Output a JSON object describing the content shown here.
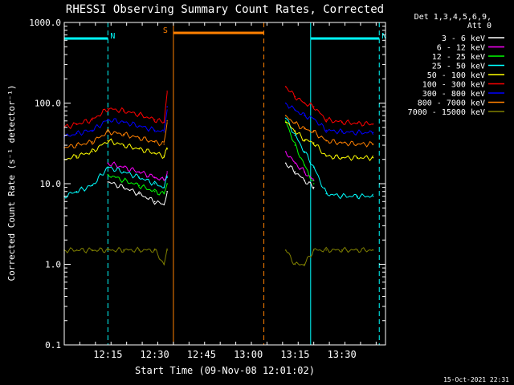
{
  "chart_data": {
    "type": "line",
    "title": "RHESSI Observing Summary Count Rates, Corrected",
    "xlabel": "Start Time (09-Nov-08 12:01:02)",
    "ylabel": "Corrected Count Rate (s⁻¹ detector⁻¹)",
    "y_scale": "log",
    "ylim": [
      0.1,
      1000
    ],
    "xlim": [
      "12:01",
      "13:44"
    ],
    "xtick_labels": [
      "12:15",
      "12:30",
      "12:45",
      "13:00",
      "13:15",
      "13:30"
    ],
    "ytick_labels": [
      "0.1",
      "1.0",
      "10.0",
      "100.0",
      "1000.0"
    ],
    "legend_header": [
      "Det 1,3,4,5,6,9,",
      "Att 0"
    ],
    "legend_position": "top-right, outside plot",
    "grid": false,
    "x": [
      "12:01",
      "12:05",
      "12:10",
      "12:15",
      "12:20",
      "12:25",
      "12:30",
      "12:33",
      "12:34",
      "13:09",
      "13:12",
      "13:15",
      "13:18",
      "13:21",
      "13:25",
      "13:30",
      "13:35",
      "13:40"
    ],
    "series": [
      {
        "name": "3 - 6 keV",
        "color": "#ffffff",
        "values": [
          null,
          null,
          null,
          10.5,
          9,
          7.5,
          6,
          5.5,
          8,
          null,
          18,
          14,
          11,
          9,
          null,
          null,
          null,
          null
        ]
      },
      {
        "name": "6 - 12 keV",
        "color": "#ff00ff",
        "values": [
          null,
          null,
          null,
          18,
          16,
          14,
          12,
          11,
          14,
          null,
          25,
          18,
          14,
          11,
          null,
          null,
          null,
          null
        ]
      },
      {
        "name": "12 - 25 keV",
        "color": "#00ff00",
        "values": [
          null,
          null,
          null,
          13,
          11,
          9.5,
          8,
          7.5,
          10,
          null,
          60,
          30,
          17,
          10,
          null,
          null,
          null,
          null
        ]
      },
      {
        "name": "25 - 50 keV",
        "color": "#00ffff",
        "values": [
          7,
          8,
          9.5,
          16,
          14,
          12,
          10,
          9,
          12,
          null,
          65,
          40,
          25,
          16,
          7.5,
          7,
          7,
          7
        ]
      },
      {
        "name": "50 - 100 keV",
        "color": "#ffff00",
        "values": [
          20,
          22,
          25,
          34,
          30,
          27,
          24,
          22,
          27,
          null,
          58,
          45,
          35,
          32,
          22,
          21,
          21,
          21
        ]
      },
      {
        "name": "100 - 300 keV",
        "color": "#ff0000",
        "values": [
          50,
          55,
          62,
          85,
          80,
          72,
          62,
          58,
          140,
          null,
          160,
          120,
          100,
          90,
          62,
          58,
          56,
          55
        ]
      },
      {
        "name": "300 - 800 keV",
        "color": "#0000ff",
        "values": [
          38,
          42,
          46,
          62,
          58,
          52,
          46,
          44,
          90,
          null,
          100,
          82,
          70,
          64,
          46,
          44,
          43,
          43
        ]
      },
      {
        "name": "800 - 7000 keV",
        "color": "#ff8000",
        "values": [
          28,
          30,
          33,
          44,
          41,
          37,
          33,
          31,
          60,
          null,
          70,
          56,
          48,
          44,
          34,
          32,
          31,
          31
        ]
      },
      {
        "name": "7000 - 15000 keV",
        "color": "#808000",
        "values": [
          1.5,
          1.5,
          1.5,
          1.5,
          1.5,
          1.5,
          1.5,
          1,
          1.5,
          null,
          1.5,
          1,
          1,
          1.5,
          1.5,
          1.5,
          1.5,
          1.5
        ]
      }
    ],
    "annotations": [
      {
        "label": "N",
        "kind": "night",
        "color": "#00ffff",
        "start": "12:01",
        "end": "12:15"
      },
      {
        "label": "N",
        "kind": "night",
        "color": "#00ffff",
        "start": "13:20",
        "end": "13:42"
      },
      {
        "label": "S",
        "kind": "SAA",
        "color": "#ff8000",
        "start": "12:36",
        "end": "13:05"
      }
    ]
  },
  "footer": {
    "timestamp": "15-Oct-2021 22:31"
  }
}
